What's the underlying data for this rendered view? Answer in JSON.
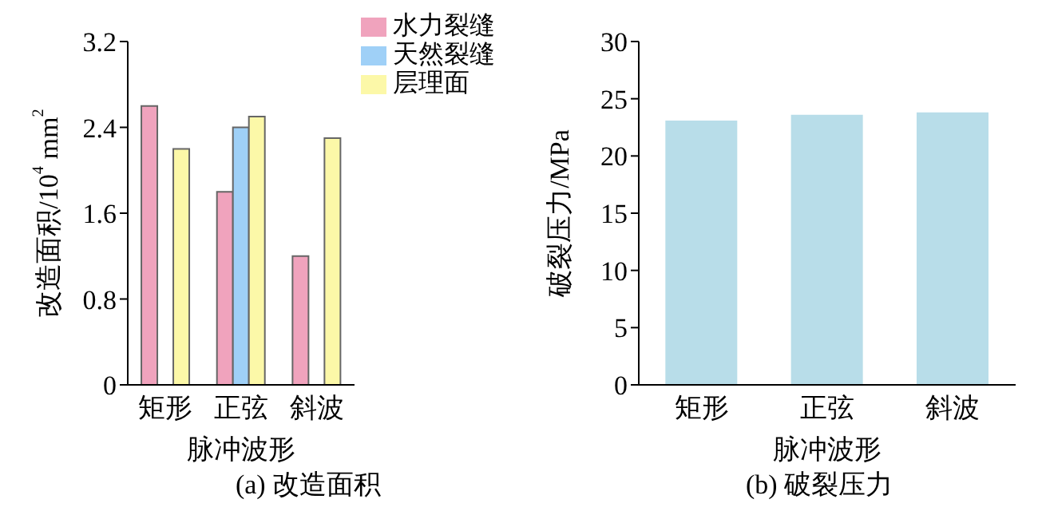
{
  "chart_data": [
    {
      "type": "bar",
      "title": "(a) 改造面积",
      "xlabel": "脉冲波形",
      "ylabel": "改造面积/10$^{4}$ mm$^{2}$",
      "categories": [
        "矩形",
        "正弦",
        "斜波"
      ],
      "series": [
        {
          "name": "水力裂缝",
          "color": "#f0a3bd",
          "values": [
            2.6,
            1.8,
            1.2
          ]
        },
        {
          "name": "天然裂缝",
          "color": "#9fd0f7",
          "values": [
            null,
            2.4,
            null
          ]
        },
        {
          "name": "层理面",
          "color": "#fcf8a8",
          "values": [
            2.2,
            2.5,
            2.3
          ]
        }
      ],
      "ylim": [
        0,
        3.2
      ],
      "yticks": [
        0,
        0.8,
        1.6,
        2.4,
        3.2
      ],
      "legend": "top right"
    },
    {
      "type": "bar",
      "title": "(b) 破裂压力",
      "xlabel": "脉冲波形",
      "ylabel": "破裂压力/MPa",
      "categories": [
        "矩形",
        "正弦",
        "斜波"
      ],
      "series": [
        {
          "color": "#b8dde9",
          "values": [
            23.1,
            23.6,
            23.8
          ]
        }
      ],
      "ylim": [
        0,
        30
      ],
      "yticks": [
        0,
        5,
        10,
        15,
        20,
        25,
        30
      ]
    }
  ]
}
